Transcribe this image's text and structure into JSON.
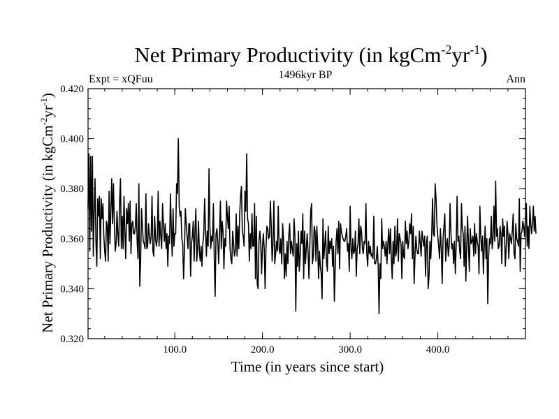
{
  "chart_data": {
    "type": "line",
    "title": {
      "text": "Net Primary Productivity (in kgCm",
      "exp1": "-2",
      "mid": "yr",
      "exp2": "-1",
      "close": ")"
    },
    "subtitle_left": "Expt = xQFuu",
    "subtitle_center": "1496kyr BP",
    "subtitle_right": "Ann",
    "xlabel": "Time (in years since start)",
    "ylabel": {
      "text": "Net Primary Productivity (in kgCm",
      "exp1": "-2",
      "mid": "yr",
      "exp2": "-1",
      "close": ")"
    },
    "xlim": [
      1,
      500
    ],
    "ylim": [
      0.32,
      0.42
    ],
    "x_ticks": [
      100,
      200,
      300,
      400
    ],
    "x_tick_labels": [
      "100.0",
      "200.0",
      "300.0",
      "400.0"
    ],
    "y_ticks": [
      0.32,
      0.34,
      0.36,
      0.38,
      0.4,
      0.42
    ],
    "y_tick_labels": [
      "0.320",
      "0.340",
      "0.360",
      "0.380",
      "0.400",
      "0.420"
    ],
    "series": [
      {
        "name": "NPP",
        "color": "#000000",
        "x_start": 1,
        "x_step": 1,
        "values": [
          0.372,
          0.394,
          0.355,
          0.393,
          0.363,
          0.393,
          0.353,
          0.371,
          0.384,
          0.359,
          0.349,
          0.376,
          0.369,
          0.377,
          0.352,
          0.376,
          0.368,
          0.374,
          0.361,
          0.355,
          0.351,
          0.367,
          0.365,
          0.351,
          0.379,
          0.358,
          0.371,
          0.384,
          0.366,
          0.382,
          0.366,
          0.355,
          0.358,
          0.371,
          0.362,
          0.357,
          0.375,
          0.384,
          0.356,
          0.369,
          0.356,
          0.377,
          0.363,
          0.352,
          0.372,
          0.366,
          0.374,
          0.359,
          0.375,
          0.354,
          0.366,
          0.367,
          0.362,
          0.362,
          0.365,
          0.374,
          0.359,
          0.352,
          0.382,
          0.341,
          0.351,
          0.372,
          0.365,
          0.359,
          0.358,
          0.356,
          0.378,
          0.356,
          0.357,
          0.366,
          0.361,
          0.358,
          0.361,
          0.377,
          0.355,
          0.353,
          0.369,
          0.36,
          0.357,
          0.36,
          0.379,
          0.357,
          0.367,
          0.361,
          0.356,
          0.374,
          0.366,
          0.359,
          0.366,
          0.356,
          0.362,
          0.349,
          0.361,
          0.358,
          0.378,
          0.364,
          0.353,
          0.372,
          0.357,
          0.362,
          0.362,
          0.382,
          0.378,
          0.4,
          0.373,
          0.369,
          0.371,
          0.36,
          0.358,
          0.344,
          0.355,
          0.372,
          0.366,
          0.361,
          0.356,
          0.366,
          0.366,
          0.345,
          0.358,
          0.361,
          0.367,
          0.351,
          0.363,
          0.372,
          0.351,
          0.356,
          0.367,
          0.355,
          0.351,
          0.357,
          0.349,
          0.358,
          0.362,
          0.376,
          0.364,
          0.353,
          0.363,
          0.357,
          0.388,
          0.365,
          0.356,
          0.361,
          0.359,
          0.374,
          0.352,
          0.337,
          0.362,
          0.364,
          0.359,
          0.35,
          0.362,
          0.375,
          0.356,
          0.367,
          0.363,
          0.348,
          0.36,
          0.357,
          0.375,
          0.369,
          0.364,
          0.373,
          0.356,
          0.352,
          0.35,
          0.363,
          0.358,
          0.353,
          0.355,
          0.37,
          0.353,
          0.365,
          0.356,
          0.37,
          0.377,
          0.381,
          0.363,
          0.361,
          0.357,
          0.379,
          0.371,
          0.394,
          0.368,
          0.366,
          0.351,
          0.362,
          0.356,
          0.37,
          0.357,
          0.357,
          0.374,
          0.344,
          0.369,
          0.342,
          0.34,
          0.359,
          0.363,
          0.358,
          0.346,
          0.357,
          0.362,
          0.356,
          0.34,
          0.356,
          0.365,
          0.364,
          0.36,
          0.361,
          0.375,
          0.365,
          0.351,
          0.358,
          0.375,
          0.35,
          0.354,
          0.359,
          0.355,
          0.373,
          0.356,
          0.354,
          0.36,
          0.35,
          0.366,
          0.36,
          0.344,
          0.354,
          0.345,
          0.359,
          0.35,
          0.361,
          0.366,
          0.354,
          0.359,
          0.356,
          0.353,
          0.368,
          0.361,
          0.331,
          0.358,
          0.349,
          0.363,
          0.347,
          0.353,
          0.363,
          0.358,
          0.37,
          0.344,
          0.363,
          0.35,
          0.356,
          0.362,
          0.355,
          0.344,
          0.357,
          0.371,
          0.374,
          0.35,
          0.353,
          0.365,
          0.363,
          0.351,
          0.365,
          0.357,
          0.344,
          0.355,
          0.349,
          0.346,
          0.336,
          0.368,
          0.352,
          0.357,
          0.363,
          0.351,
          0.347,
          0.365,
          0.354,
          0.359,
          0.356,
          0.36,
          0.349,
          0.357,
          0.335,
          0.349,
          0.359,
          0.364,
          0.354,
          0.367,
          0.348,
          0.366,
          0.363,
          0.361,
          0.36,
          0.359,
          0.359,
          0.361,
          0.364,
          0.355,
          0.358,
          0.347,
          0.373,
          0.356,
          0.352,
          0.36,
          0.354,
          0.355,
          0.363,
          0.345,
          0.356,
          0.358,
          0.368,
          0.354,
          0.365,
          0.363,
          0.356,
          0.354,
          0.359,
          0.358,
          0.374,
          0.354,
          0.349,
          0.359,
          0.354,
          0.357,
          0.353,
          0.354,
          0.352,
          0.369,
          0.35,
          0.35,
          0.352,
          0.357,
          0.349,
          0.33,
          0.35,
          0.344,
          0.368,
          0.356,
          0.359,
          0.357,
          0.353,
          0.359,
          0.35,
          0.358,
          0.364,
          0.354,
          0.364,
          0.352,
          0.344,
          0.359,
          0.35,
          0.365,
          0.353,
          0.355,
          0.368,
          0.351,
          0.362,
          0.36,
          0.358,
          0.344,
          0.359,
          0.353,
          0.352,
          0.367,
          0.358,
          0.363,
          0.356,
          0.359,
          0.366,
          0.362,
          0.37,
          0.352,
          0.365,
          0.342,
          0.353,
          0.361,
          0.356,
          0.354,
          0.354,
          0.363,
          0.358,
          0.353,
          0.363,
          0.36,
          0.357,
          0.361,
          0.345,
          0.358,
          0.361,
          0.34,
          0.345,
          0.359,
          0.352,
          0.361,
          0.376,
          0.362,
          0.361,
          0.382,
          0.376,
          0.366,
          0.361,
          0.357,
          0.352,
          0.364,
          0.356,
          0.342,
          0.36,
          0.365,
          0.37,
          0.351,
          0.358,
          0.36,
          0.353,
          0.357,
          0.374,
          0.362,
          0.356,
          0.358,
          0.35,
          0.359,
          0.346,
          0.358,
          0.377,
          0.359,
          0.361,
          0.355,
          0.352,
          0.374,
          0.364,
          0.362,
          0.349,
          0.365,
          0.343,
          0.357,
          0.369,
          0.357,
          0.347,
          0.364,
          0.358,
          0.359,
          0.361,
          0.353,
          0.366,
          0.354,
          0.362,
          0.359,
          0.357,
          0.346,
          0.373,
          0.361,
          0.355,
          0.361,
          0.346,
          0.357,
          0.365,
          0.352,
          0.36,
          0.334,
          0.353,
          0.36,
          0.358,
          0.369,
          0.356,
          0.36,
          0.373,
          0.359,
          0.383,
          0.361,
          0.364,
          0.356,
          0.357,
          0.365,
          0.362,
          0.35,
          0.368,
          0.361,
          0.365,
          0.349,
          0.356,
          0.367,
          0.362,
          0.352,
          0.362,
          0.36,
          0.358,
          0.363,
          0.37,
          0.354,
          0.352,
          0.366,
          0.36,
          0.359,
          0.357,
          0.376,
          0.347,
          0.362,
          0.363,
          0.367,
          0.365,
          0.361,
          0.369,
          0.374,
          0.357,
          0.365,
          0.356,
          0.373,
          0.366,
          0.362,
          0.366,
          0.373,
          0.363,
          0.369,
          0.362
        ]
      }
    ]
  }
}
